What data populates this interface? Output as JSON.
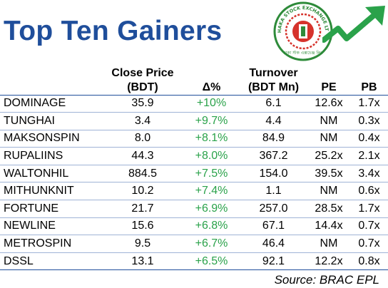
{
  "header": {
    "title": "Top Ten Gainers",
    "logo_ring_text": "DHAKA STOCK EXCHANGE LTD.",
    "logo_bottom_text": "ঢাকা স্টক এক্সচেঞ্জ লিঃ"
  },
  "table": {
    "columns": [
      "",
      "Close Price (BDT)",
      "Δ%",
      "Turnover (BDT Mn)",
      "PE",
      "PB"
    ],
    "rows": [
      [
        "DOMINAGE",
        "35.9",
        "+10%",
        "6.1",
        "12.6x",
        "1.7x"
      ],
      [
        "TUNGHAI",
        "3.4",
        "+9.7%",
        "4.4",
        "NM",
        "0.3x"
      ],
      [
        "MAKSONSPIN",
        "8.0",
        "+8.1%",
        "84.9",
        "NM",
        "0.4x"
      ],
      [
        "RUPALIINS",
        "44.3",
        "+8.0%",
        "367.2",
        "25.2x",
        "2.1x"
      ],
      [
        "WALTONHIL",
        "884.5",
        "+7.5%",
        "154.0",
        "39.5x",
        "3.4x"
      ],
      [
        "MITHUNKNIT",
        "10.2",
        "+7.4%",
        "1.1",
        "NM",
        "0.6x"
      ],
      [
        "FORTUNE",
        "21.7",
        "+6.9%",
        "257.0",
        "28.5x",
        "1.7x"
      ],
      [
        "NEWLINE",
        "15.6",
        "+6.8%",
        "67.1",
        "14.4x",
        "0.7x"
      ],
      [
        "METROSPIN",
        "9.5",
        "+6.7%",
        "46.4",
        "NM",
        "0.7x"
      ],
      [
        "DSSL",
        "13.1",
        "+6.5%",
        "92.1",
        "12.2x",
        "0.8x"
      ]
    ]
  },
  "footer": {
    "source": "Source: BRAC EPL"
  },
  "colors": {
    "title": "#1f4e9b",
    "positive": "#2aa24a",
    "logo_red": "#d6332c",
    "logo_green": "#2e8b3a"
  },
  "chart_data": {
    "type": "table",
    "title": "Top Ten Gainers",
    "columns": [
      "",
      "Close Price (BDT)",
      "Δ%",
      "Turnover (BDT Mn)",
      "PE",
      "PB"
    ],
    "rows": [
      [
        "DOMINAGE",
        35.9,
        "+10%",
        6.1,
        "12.6x",
        "1.7x"
      ],
      [
        "TUNGHAI",
        3.4,
        "+9.7%",
        4.4,
        "NM",
        "0.3x"
      ],
      [
        "MAKSONSPIN",
        8.0,
        "+8.1%",
        84.9,
        "NM",
        "0.4x"
      ],
      [
        "RUPALIINS",
        44.3,
        "+8.0%",
        367.2,
        "25.2x",
        "2.1x"
      ],
      [
        "WALTONHIL",
        884.5,
        "+7.5%",
        154.0,
        "39.5x",
        "3.4x"
      ],
      [
        "MITHUNKNIT",
        10.2,
        "+7.4%",
        1.1,
        "NM",
        "0.6x"
      ],
      [
        "FORTUNE",
        21.7,
        "+6.9%",
        257.0,
        "28.5x",
        "1.7x"
      ],
      [
        "NEWLINE",
        15.6,
        "+6.8%",
        67.1,
        "14.4x",
        "0.7x"
      ],
      [
        "METROSPIN",
        9.5,
        "+6.7%",
        46.4,
        "NM",
        "0.7x"
      ],
      [
        "DSSL",
        13.1,
        "+6.5%",
        92.1,
        "12.2x",
        "0.8x"
      ]
    ],
    "source": "Source: BRAC EPL"
  }
}
